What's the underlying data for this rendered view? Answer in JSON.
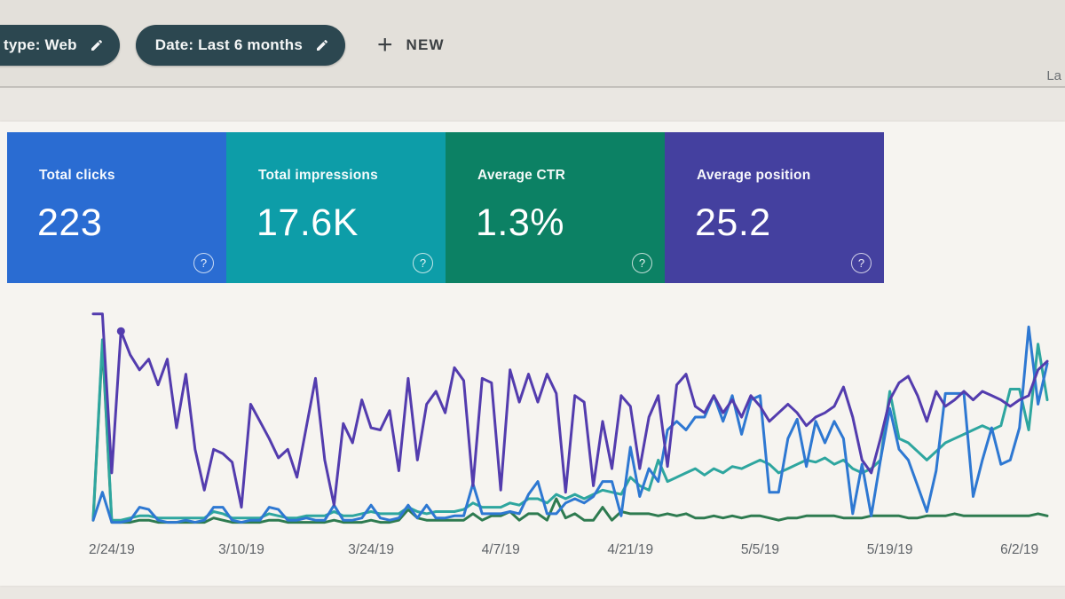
{
  "filter_bar": {
    "chips": [
      {
        "label": "type: Web"
      },
      {
        "label": "Date: Last 6 months"
      }
    ],
    "new_button": {
      "plus": "+",
      "label": "NEW"
    },
    "right_truncated_text": "La"
  },
  "cards": [
    {
      "label": "Total clicks",
      "value": "223",
      "help": "?",
      "color": "#2a6cd2"
    },
    {
      "label": "Total impressions",
      "value": "17.6K",
      "help": "?",
      "color": "#0d9da8"
    },
    {
      "label": "Average CTR",
      "value": "1.3%",
      "help": "?",
      "color": "#0c8164"
    },
    {
      "label": "Average position",
      "value": "25.2",
      "help": "?",
      "color": "#44409f"
    }
  ],
  "chart_data": {
    "type": "line",
    "title": "",
    "xlabel": "",
    "ylabel": "",
    "legend": "none (metric tiles above act as legend)",
    "grid": false,
    "y_axis_note": "no visible y-axis ticks; series values are relative heights 0-100 of plot area",
    "x_labels": [
      {
        "label": "2/24/19",
        "day": 2
      },
      {
        "label": "3/10/19",
        "day": 16
      },
      {
        "label": "3/24/19",
        "day": 30
      },
      {
        "label": "4/7/19",
        "day": 44
      },
      {
        "label": "4/21/19",
        "day": 58
      },
      {
        "label": "5/5/19",
        "day": 72
      },
      {
        "label": "5/19/19",
        "day": 86
      },
      {
        "label": "6/2/19",
        "day": 100
      }
    ],
    "series": [
      {
        "name": "Average CTR",
        "color": "#2e7b50",
        "values": [
          2,
          84,
          1,
          1,
          1,
          2,
          2,
          1,
          1,
          1,
          1,
          1,
          1,
          3,
          2,
          1,
          1,
          1,
          1,
          2,
          2,
          1,
          1,
          1,
          1,
          1,
          2,
          1,
          1,
          1,
          2,
          1,
          1,
          2,
          7,
          3,
          2,
          2,
          2,
          2,
          2,
          5,
          2,
          4,
          4,
          6,
          2,
          5,
          5,
          2,
          12,
          3,
          5,
          2,
          2,
          8,
          2,
          6,
          5,
          5,
          5,
          4,
          5,
          4,
          5,
          3,
          3,
          4,
          3,
          4,
          3,
          4,
          4,
          3,
          2,
          3,
          3,
          4,
          4,
          4,
          4,
          3,
          3,
          3,
          4,
          4,
          4,
          4,
          3,
          3,
          4,
          4,
          4,
          5,
          4,
          4,
          4,
          4,
          4,
          4,
          4,
          4,
          5,
          4
        ]
      },
      {
        "name": "Total impressions",
        "color": "#2ea69f",
        "values": [
          3,
          86,
          2,
          2,
          3,
          4,
          4,
          3,
          3,
          3,
          3,
          3,
          3,
          6,
          5,
          3,
          3,
          3,
          3,
          5,
          4,
          3,
          3,
          4,
          4,
          4,
          6,
          4,
          4,
          5,
          6,
          5,
          5,
          5,
          8,
          6,
          5,
          6,
          6,
          6,
          7,
          10,
          8,
          8,
          8,
          10,
          9,
          12,
          12,
          10,
          14,
          12,
          14,
          12,
          14,
          16,
          15,
          14,
          22,
          18,
          16,
          30,
          20,
          22,
          24,
          26,
          23,
          26,
          24,
          27,
          26,
          28,
          30,
          28,
          24,
          26,
          28,
          30,
          29,
          31,
          28,
          30,
          26,
          24,
          26,
          30,
          62,
          40,
          38,
          34,
          30,
          34,
          38,
          40,
          42,
          44,
          46,
          44,
          46,
          63,
          63,
          44,
          84,
          58
        ]
      },
      {
        "name": "Total clicks",
        "color": "#2e78d2",
        "values": [
          2,
          15,
          1,
          1,
          2,
          8,
          7,
          2,
          1,
          1,
          2,
          1,
          2,
          8,
          8,
          2,
          1,
          2,
          2,
          8,
          7,
          2,
          2,
          3,
          2,
          2,
          9,
          2,
          2,
          3,
          9,
          3,
          2,
          3,
          9,
          3,
          9,
          3,
          3,
          4,
          4,
          19,
          5,
          5,
          5,
          6,
          5,
          14,
          20,
          5,
          5,
          10,
          12,
          10,
          13,
          20,
          20,
          4,
          36,
          13,
          26,
          20,
          44,
          48,
          44,
          50,
          50,
          60,
          48,
          60,
          42,
          58,
          60,
          15,
          15,
          40,
          49,
          27,
          48,
          38,
          48,
          40,
          5,
          28,
          4,
          30,
          54,
          35,
          30,
          18,
          6,
          25,
          61,
          61,
          61,
          13,
          30,
          45,
          28,
          30,
          45,
          92,
          56,
          75
        ]
      },
      {
        "name": "Average position",
        "color": "#533cae",
        "values": [
          98,
          98,
          24,
          90,
          79,
          72,
          77,
          65,
          77,
          45,
          70,
          35,
          16,
          35,
          33,
          29,
          8,
          56,
          48,
          40,
          31,
          35,
          22,
          45,
          68,
          30,
          9,
          47,
          38,
          58,
          45,
          44,
          53,
          25,
          68,
          30,
          56,
          62,
          52,
          73,
          67,
          18,
          68,
          66,
          16,
          72,
          57,
          70,
          57,
          70,
          61,
          15,
          60,
          57,
          18,
          48,
          26,
          60,
          55,
          26,
          50,
          60,
          27,
          65,
          70,
          55,
          52,
          60,
          52,
          58,
          50,
          60,
          55,
          48,
          52,
          56,
          52,
          46,
          50,
          52,
          55,
          64,
          50,
          30,
          24,
          40,
          58,
          66,
          69,
          60,
          48,
          62,
          55,
          58,
          62,
          58,
          62,
          60,
          58,
          55,
          58,
          60,
          72,
          76
        ]
      }
    ],
    "point_markers": [
      {
        "series": "Average position",
        "index": 3
      }
    ]
  },
  "colors": {
    "page_bg": "#e9e6e1",
    "toolbar_bg": "#e3e0da",
    "panel_bg": "#f6f4f0",
    "chip_bg": "#2c4750",
    "divider": "#c3c0bb",
    "axis_label": "#5f6368"
  }
}
